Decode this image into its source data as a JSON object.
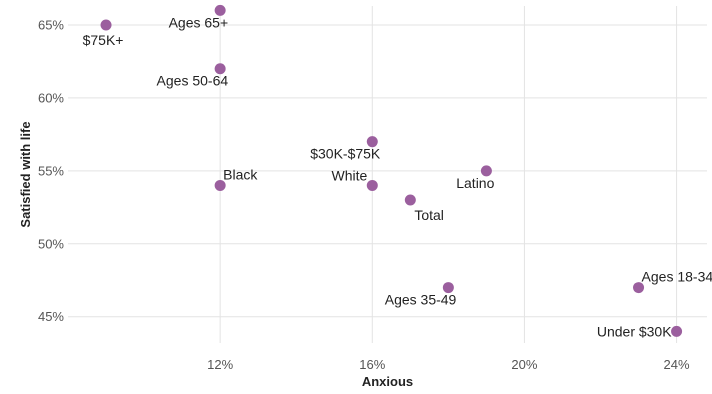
{
  "chart_data": {
    "type": "scatter",
    "title": "",
    "xlabel": "Anxious",
    "ylabel": "Satisfied with life",
    "xlim": [
      8,
      24.8
    ],
    "ylim": [
      43.2,
      66.3
    ],
    "xticks": [
      12,
      16,
      20,
      24
    ],
    "xtick_labels": [
      "12%",
      "16%",
      "20%",
      "24%"
    ],
    "yticks": [
      45,
      50,
      55,
      60,
      65
    ],
    "ytick_labels": [
      "45%",
      "50%",
      "55%",
      "60%",
      "65%"
    ],
    "grid": true,
    "legend": "none",
    "point_color": "#9b5f9e",
    "points": [
      {
        "label": "$75K+",
        "x": 9,
        "y": 65,
        "label_pos": "below"
      },
      {
        "label": "Ages 65+",
        "x": 12,
        "y": 66,
        "label_pos": "below-left"
      },
      {
        "label": "Ages 50-64",
        "x": 12,
        "y": 62,
        "label_pos": "below-left"
      },
      {
        "label": "Black",
        "x": 12,
        "y": 54,
        "label_pos": "above-right"
      },
      {
        "label": "$30K-$75K",
        "x": 16,
        "y": 57,
        "label_pos": "below-left"
      },
      {
        "label": "White",
        "x": 16,
        "y": 54,
        "label_pos": "above-left"
      },
      {
        "label": "Total",
        "x": 17,
        "y": 53,
        "label_pos": "below-right"
      },
      {
        "label": "Latino",
        "x": 19,
        "y": 55,
        "label_pos": "below-left"
      },
      {
        "label": "Ages 35-49",
        "x": 18,
        "y": 47,
        "label_pos": "below-left"
      },
      {
        "label": "Ages 18-34",
        "x": 23,
        "y": 47,
        "label_pos": "above-right"
      },
      {
        "label": "Under $30K",
        "x": 24,
        "y": 44,
        "label_pos": "left"
      }
    ]
  }
}
